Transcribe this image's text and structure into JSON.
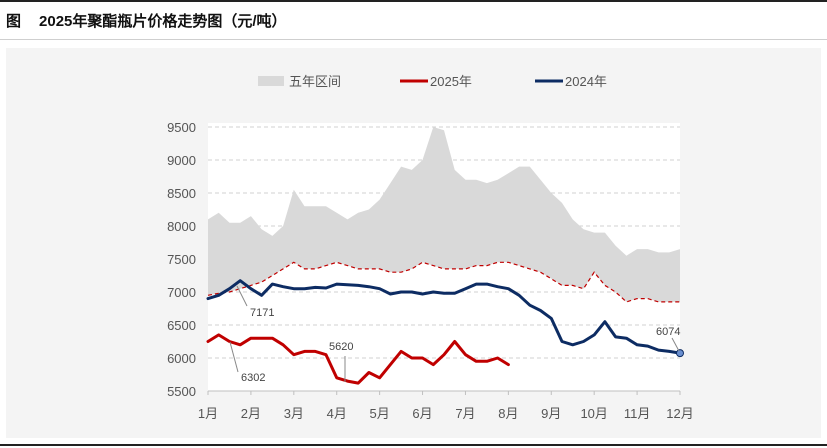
{
  "figure_label": "图",
  "figure_title": "2025年聚酯瓶片价格走势图（元/吨）",
  "colors": {
    "band": "#d9d9d9",
    "series_2025": "#c00000",
    "series_2024": "#0d2c63",
    "grid": "#d0d0d0"
  },
  "chart_data": {
    "type": "line",
    "title": "",
    "xlabel": "",
    "ylabel": "",
    "ylim": [
      5500,
      9500
    ],
    "y_ticks": [
      9500,
      9000,
      8500,
      8000,
      7500,
      7000,
      6500,
      6000,
      5500
    ],
    "categories": [
      "1月",
      "2月",
      "3月",
      "4月",
      "5月",
      "6月",
      "7月",
      "8月",
      "9月",
      "10月",
      "11月",
      "12月"
    ],
    "x_range": [
      1,
      12
    ],
    "grid": "horizontal dashed",
    "legend": {
      "placement": "top",
      "entries": [
        "五年区间",
        "2025年",
        "2024年"
      ]
    },
    "band": {
      "name": "五年区间",
      "x": [
        1,
        1.25,
        1.5,
        1.75,
        2,
        2.25,
        2.5,
        2.75,
        3,
        3.25,
        3.5,
        3.75,
        4,
        4.25,
        4.5,
        4.75,
        5,
        5.25,
        5.5,
        5.75,
        6,
        6.25,
        6.5,
        6.75,
        7,
        7.25,
        7.5,
        7.75,
        8,
        8.25,
        8.5,
        8.75,
        9,
        9.25,
        9.5,
        9.75,
        10,
        10.25,
        10.5,
        10.75,
        11,
        11.25,
        11.5,
        11.75,
        12
      ],
      "upper": [
        8100,
        8200,
        8050,
        8050,
        8150,
        7950,
        7850,
        8000,
        8550,
        8300,
        8300,
        8300,
        8200,
        8100,
        8200,
        8250,
        8400,
        8650,
        8900,
        8850,
        9000,
        9500,
        9450,
        8850,
        8700,
        8700,
        8650,
        8700,
        8800,
        8900,
        8900,
        8700,
        8500,
        8350,
        8100,
        7950,
        7900,
        7900,
        7700,
        7550,
        7650,
        7650,
        7600,
        7600,
        7650
      ],
      "lower": [
        6950,
        6980,
        7000,
        7050,
        7100,
        7150,
        7250,
        7350,
        7450,
        7350,
        7350,
        7400,
        7450,
        7400,
        7350,
        7350,
        7350,
        7300,
        7300,
        7350,
        7450,
        7400,
        7350,
        7350,
        7350,
        7400,
        7400,
        7450,
        7450,
        7400,
        7350,
        7300,
        7200,
        7100,
        7100,
        7050,
        7300,
        7100,
        7000,
        6850,
        6900,
        6900,
        6850,
        6850,
        6850
      ]
    },
    "series": [
      {
        "name": "2025年",
        "x": [
          1,
          1.25,
          1.5,
          1.75,
          2,
          2.25,
          2.5,
          2.75,
          3,
          3.25,
          3.5,
          3.75,
          4,
          4.25,
          4.5,
          4.75,
          5,
          5.25,
          5.5,
          5.75,
          6,
          6.25,
          6.5,
          6.75,
          7,
          7.25,
          7.5,
          7.75,
          8
        ],
        "values": [
          6250,
          6350,
          6250,
          6200,
          6300,
          6300,
          6300,
          6200,
          6050,
          6100,
          6100,
          6050,
          5700,
          5650,
          5620,
          5780,
          5700,
          5900,
          6100,
          6000,
          6000,
          5900,
          6050,
          6250,
          6050,
          5950,
          5950,
          6000,
          5900
        ]
      },
      {
        "name": "2024年",
        "x": [
          1,
          1.25,
          1.5,
          1.75,
          2,
          2.25,
          2.5,
          2.75,
          3,
          3.25,
          3.5,
          3.75,
          4,
          4.25,
          4.5,
          4.75,
          5,
          5.25,
          5.5,
          5.75,
          6,
          6.25,
          6.5,
          6.75,
          7,
          7.25,
          7.5,
          7.75,
          8,
          8.25,
          8.5,
          8.75,
          9,
          9.25,
          9.5,
          9.75,
          10,
          10.25,
          10.5,
          10.75,
          11,
          11.25,
          11.5,
          11.75,
          12
        ],
        "values": [
          6900,
          6950,
          7050,
          7171,
          7050,
          6950,
          7120,
          7080,
          7050,
          7050,
          7070,
          7060,
          7120,
          7110,
          7100,
          7080,
          7050,
          6970,
          7000,
          7000,
          6970,
          7000,
          6980,
          6980,
          7050,
          7120,
          7120,
          7080,
          7050,
          6950,
          6800,
          6720,
          6600,
          6250,
          6200,
          6250,
          6350,
          6550,
          6320,
          6300,
          6200,
          6180,
          6120,
          6100,
          6074
        ]
      }
    ],
    "callouts": [
      "7171",
      "6302",
      "5620",
      "6074"
    ]
  }
}
